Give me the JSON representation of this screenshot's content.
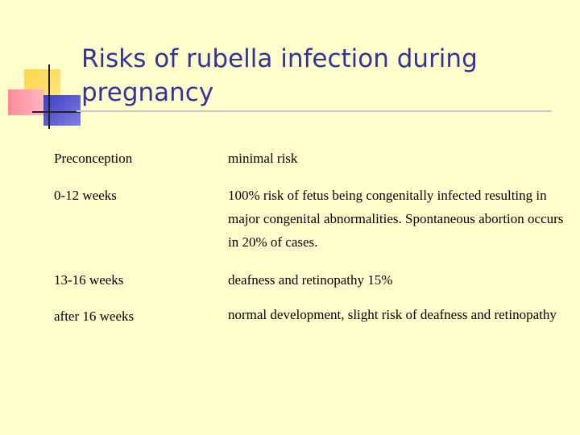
{
  "slide": {
    "title": "Risks of rubella infection during pregnancy",
    "rows": [
      {
        "stage": "Preconception",
        "risk": "minimal risk"
      },
      {
        "stage": "0-12 weeks",
        "risk": "100% risk of fetus being congenitally infected resulting in major congenital abnormalities. Spontaneous abortion occurs in 20% of cases."
      },
      {
        "stage": "13-16 weeks",
        "risk": "deafness and retinopathy 15%"
      },
      {
        "stage": "after 16 weeks",
        "risk": "normal development, slight risk of deafness and retinopathy"
      }
    ]
  }
}
